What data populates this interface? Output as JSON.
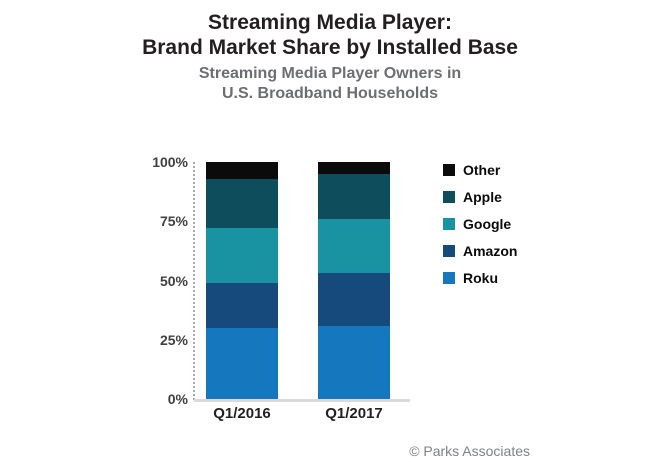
{
  "header": {
    "title_line1": "Streaming Media Player:",
    "title_line2": "Brand Market Share by Installed Base",
    "subtitle_line1": "Streaming Media Player Owners in",
    "subtitle_line2": "U.S. Broadband Households"
  },
  "footer": {
    "copyright": "© Parks Associates"
  },
  "chart_data": {
    "type": "bar",
    "variant": "stacked-percent",
    "title": "Streaming Media Player: Brand Market Share by Installed Base",
    "subtitle": "Streaming Media Player Owners in U.S. Broadband Households",
    "categories": [
      "Q1/2016",
      "Q1/2017"
    ],
    "series": [
      {
        "name": "Roku",
        "color": "#1577BE",
        "values": [
          30,
          31
        ]
      },
      {
        "name": "Amazon",
        "color": "#174A7C",
        "values": [
          19,
          22
        ]
      },
      {
        "name": "Google",
        "color": "#1992A1",
        "values": [
          23,
          23
        ]
      },
      {
        "name": "Apple",
        "color": "#0E4D5C",
        "values": [
          21,
          19
        ]
      },
      {
        "name": "Other",
        "color": "#0B0B0B",
        "values": [
          7,
          5
        ]
      }
    ],
    "stack_order_bottom_to_top": [
      "Roku",
      "Amazon",
      "Google",
      "Apple",
      "Other"
    ],
    "legend_order_top_to_bottom": [
      "Other",
      "Apple",
      "Google",
      "Amazon",
      "Roku"
    ],
    "legend_position": "right",
    "xlabel": "",
    "ylabel": "",
    "ylim": [
      0,
      100
    ],
    "yticks": [
      "0%",
      "25%",
      "50%",
      "75%",
      "100%"
    ],
    "grid": false,
    "unit": "percent",
    "colors": {
      "title": "#231F20",
      "subtitle": "#6D6E71",
      "tick_label": "#414042",
      "category_label": "#231F20",
      "axis_dotted_line": "#A7A9AC",
      "baseline": "#D9DADB",
      "copyright": "#808285",
      "background": "#FFFFFF"
    }
  }
}
